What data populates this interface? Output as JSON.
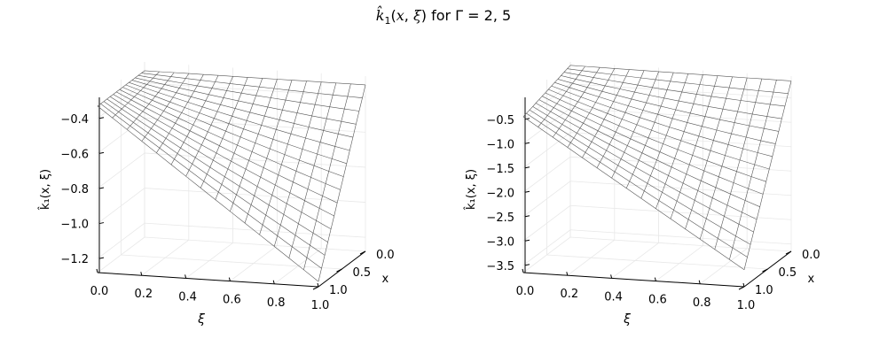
{
  "figure": {
    "title": "k̂₁(x, ξ) for Γ = 2, 5"
  },
  "chart_data": [
    {
      "type": "surface",
      "title": "",
      "xlabel": "ξ",
      "ylabel": "x",
      "zlabel": "k̂₁(x, ξ)",
      "xlim": [
        0,
        1
      ],
      "ylim": [
        0,
        1
      ],
      "zlim": [
        -1.28,
        -0.28
      ],
      "x_ticks": [
        "0.0",
        "0.2",
        "0.4",
        "0.6",
        "0.8",
        "1.0"
      ],
      "y_ticks": [
        "0.0",
        "0.5",
        "1.0"
      ],
      "z_ticks": [
        {
          "value": -1.2,
          "label": "−1.2"
        },
        {
          "value": -1.0,
          "label": "−1.0"
        },
        {
          "value": -0.8,
          "label": "−0.8"
        },
        {
          "value": -0.6,
          "label": "−0.6"
        },
        {
          "value": -0.4,
          "label": "−0.4"
        }
      ],
      "grid": true,
      "surface": {
        "corner_00": -0.33,
        "corner_10": -0.33,
        "corner_01": -0.33,
        "corner_11": -1.25,
        "curvature": 0.2
      },
      "wire_color": "#555555"
    },
    {
      "type": "surface",
      "title": "",
      "xlabel": "ξ",
      "ylabel": "x",
      "zlabel": "k̂₁(x, ξ)",
      "xlim": [
        0,
        1
      ],
      "ylim": [
        0,
        1
      ],
      "zlim": [
        -3.65,
        -0.05
      ],
      "x_ticks": [
        "0.0",
        "0.2",
        "0.4",
        "0.6",
        "0.8",
        "1.0"
      ],
      "y_ticks": [
        "0.0",
        "0.5",
        "1.0"
      ],
      "z_ticks": [
        {
          "value": -3.5,
          "label": "−3.5"
        },
        {
          "value": -3.0,
          "label": "−3.0"
        },
        {
          "value": -2.5,
          "label": "−2.5"
        },
        {
          "value": -2.0,
          "label": "−2.0"
        },
        {
          "value": -1.5,
          "label": "−1.5"
        },
        {
          "value": -1.0,
          "label": "−1.0"
        },
        {
          "value": -0.5,
          "label": "−0.5"
        }
      ],
      "grid": true,
      "surface": {
        "corner_00": -0.12,
        "corner_10": -0.15,
        "corner_01": -0.45,
        "corner_11": -3.3,
        "curvature": 1.2
      },
      "wire_color": "#555555"
    }
  ]
}
